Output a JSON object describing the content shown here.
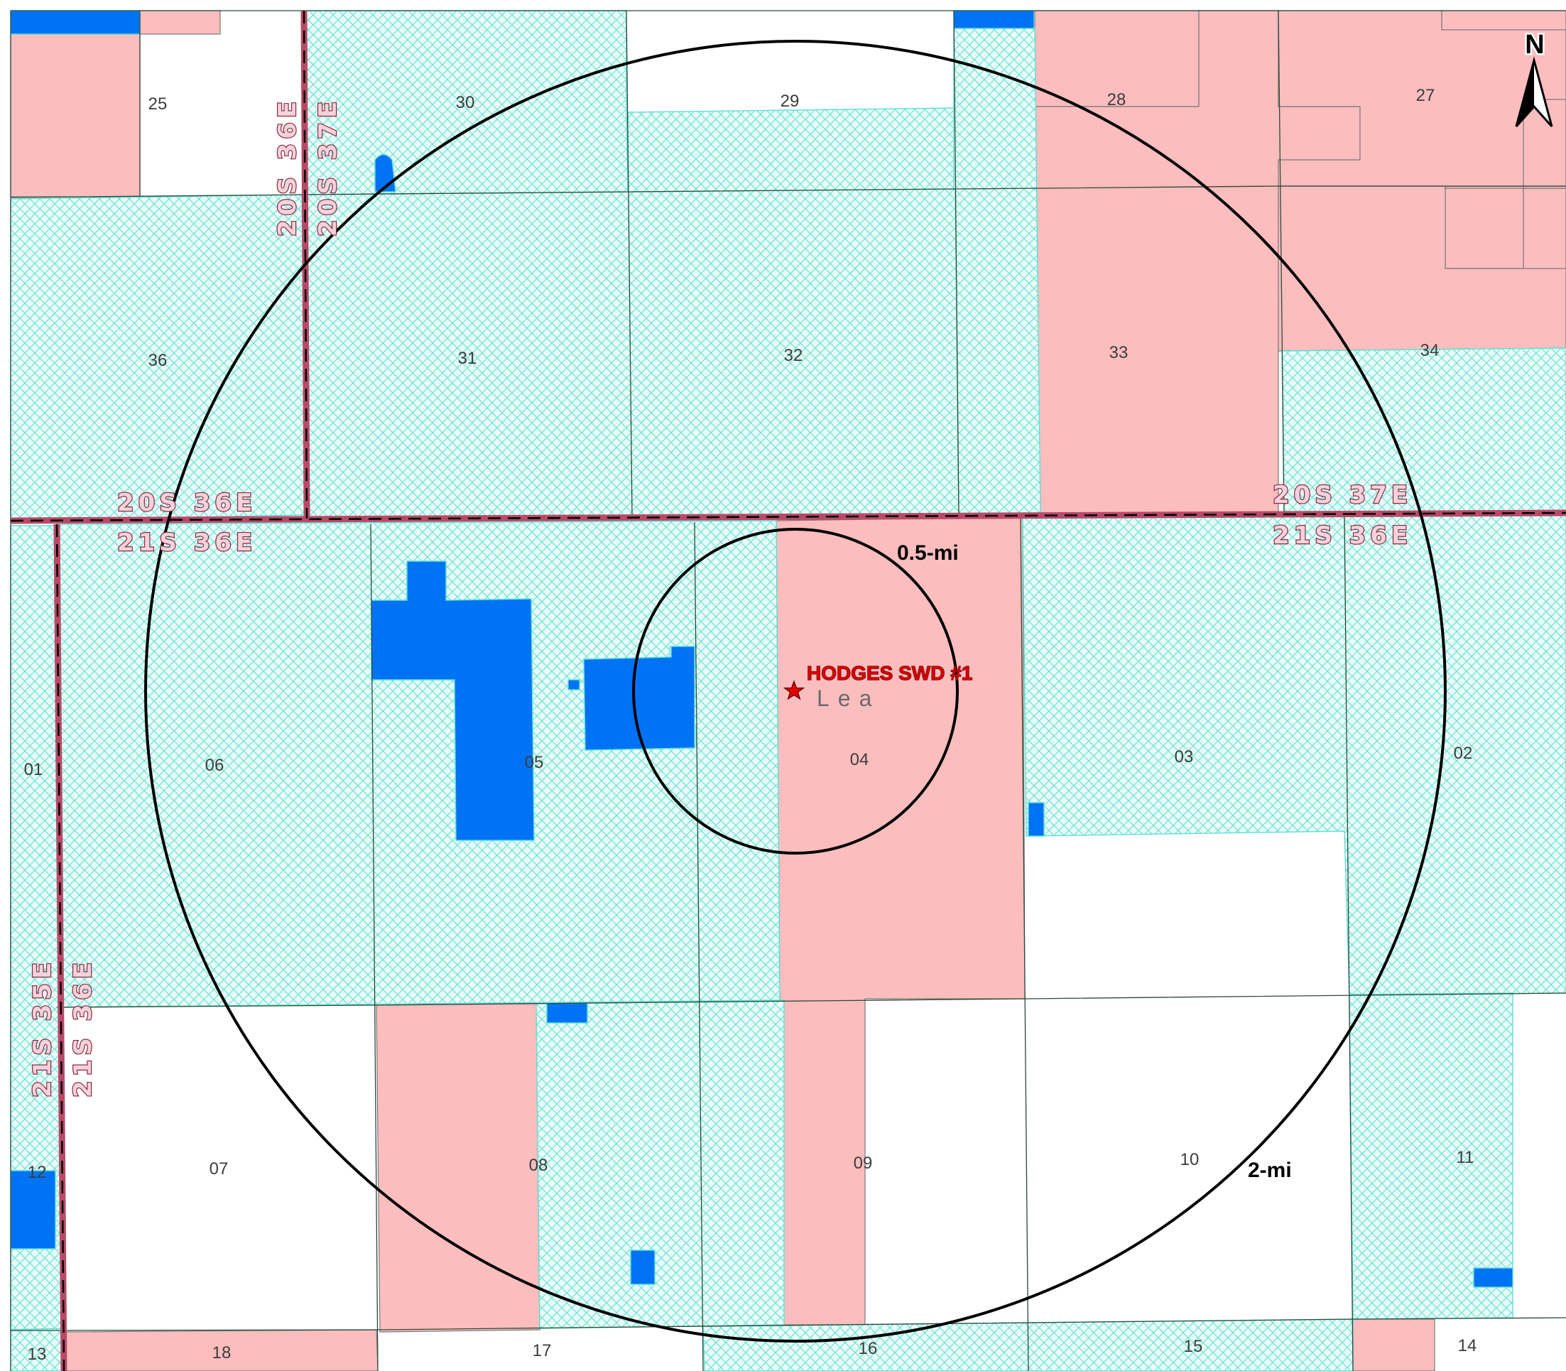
{
  "map": {
    "north_label": "N",
    "well": {
      "name": "HODGES SWD #1",
      "county": "Lea",
      "symbol": "star-icon"
    },
    "rings": {
      "inner": "0.5-mi",
      "outer": "2-mi"
    },
    "townships": {
      "t20s36e_top_a": "20S 36E",
      "t20s37e_top": "20S 37E",
      "t20s36e_mid": "20S 36E",
      "t21s36e_mid": "21S 36E",
      "t20s37e_right": "20S 37E",
      "t21s36e_right": "21S 36E",
      "t21s35e_left": "21S 35E",
      "t21s36e_left": "21S 36E"
    },
    "sections": {
      "s25": "25",
      "s30": "30",
      "s29": "29",
      "s28": "28",
      "s27": "27",
      "s36": "36",
      "s31": "31",
      "s32": "32",
      "s33": "33",
      "s34": "34",
      "s01": "01",
      "s06": "06",
      "s05": "05",
      "s04": "04",
      "s03": "03",
      "s02": "02",
      "s12": "12",
      "s07": "07",
      "s08": "08",
      "s09": "09",
      "s10": "10",
      "s11": "11",
      "s13": "13",
      "s18": "18",
      "s17": "17",
      "s16": "16",
      "s15": "15",
      "s14": "14"
    },
    "colors": {
      "state_land_fill": "#e8fbf7",
      "state_land_hatch": "#5fe0d4",
      "private_fee_land": "#fbbdbe",
      "water_feature": "#0073f5",
      "township_line": "#b84a68",
      "grid_line": "#2a4a3a"
    }
  }
}
